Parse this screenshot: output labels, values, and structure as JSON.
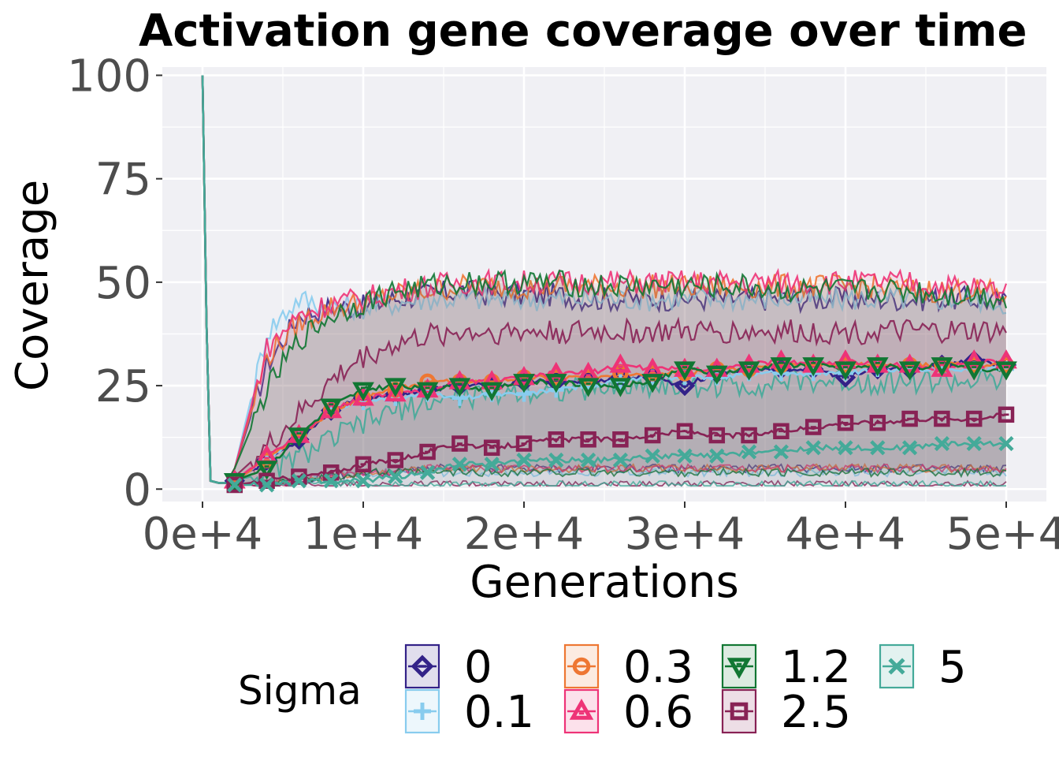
{
  "chart_data": {
    "type": "line",
    "title": "Activation gene coverage over time",
    "xlabel": "Generations",
    "ylabel": "Coverage",
    "xlim": [
      -2500,
      52500
    ],
    "ylim": [
      -3,
      102
    ],
    "x_ticks": [
      0,
      10000,
      20000,
      30000,
      40000,
      50000
    ],
    "x_tick_labels": [
      "0e+4",
      "1e+4",
      "2e+4",
      "3e+4",
      "4e+4",
      "5e+4"
    ],
    "y_ticks": [
      0,
      25,
      50,
      75,
      100
    ],
    "y_tick_labels": [
      "0",
      "25",
      "50",
      "75",
      "100"
    ],
    "grid": true,
    "legend": {
      "title": "Sigma",
      "position": "bottom"
    },
    "marker_x": [
      2000,
      4000,
      6000,
      8000,
      10000,
      12000,
      14000,
      16000,
      18000,
      20000,
      22000,
      24000,
      26000,
      28000,
      30000,
      32000,
      34000,
      36000,
      38000,
      40000,
      42000,
      44000,
      46000,
      48000,
      50000
    ],
    "series": [
      {
        "name": "0",
        "color": "#332288",
        "marker": "diamond",
        "values": [
          2,
          7,
          12,
          19,
          22,
          23,
          24,
          25,
          25,
          26,
          26,
          26,
          27,
          27,
          25,
          28,
          29,
          29,
          29,
          27,
          29,
          29,
          30,
          31,
          30
        ],
        "band_upper": [
          5,
          30,
          42,
          44,
          44,
          46,
          47,
          48,
          47,
          47,
          47,
          46,
          46,
          46,
          46,
          46,
          46,
          46,
          46,
          46,
          46,
          46,
          46,
          46,
          45
        ],
        "band_lower": [
          1,
          1,
          2,
          3,
          4,
          4,
          5,
          5,
          5,
          5,
          5,
          5,
          5,
          5,
          5,
          5,
          5,
          5,
          5,
          5,
          5,
          5,
          5,
          5,
          5
        ]
      },
      {
        "name": "0.1",
        "color": "#88CCEE",
        "marker": "plus",
        "values": [
          2,
          7,
          13,
          19,
          21,
          22,
          23,
          22,
          23,
          23,
          24,
          25,
          26,
          27,
          27,
          27,
          28,
          28,
          28,
          28,
          29,
          29,
          29,
          29,
          29
        ],
        "band_upper": [
          5,
          38,
          46,
          44,
          44,
          45,
          46,
          46,
          46,
          46,
          46,
          46,
          46,
          46,
          46,
          46,
          46,
          46,
          46,
          46,
          46,
          46,
          46,
          46,
          45
        ],
        "band_lower": [
          1,
          1,
          2,
          3,
          4,
          4,
          4,
          4,
          4,
          4,
          4,
          4,
          4,
          4,
          4,
          4,
          4,
          4,
          4,
          4,
          4,
          4,
          4,
          4,
          4
        ]
      },
      {
        "name": "0.3",
        "color": "#EE7733",
        "marker": "circle",
        "values": [
          2,
          7,
          13,
          19,
          22,
          24,
          26,
          26,
          26,
          27,
          27,
          27,
          28,
          28,
          28,
          29,
          29,
          30,
          30,
          30,
          30,
          30,
          30,
          30,
          30
        ],
        "band_upper": [
          5,
          32,
          40,
          44,
          45,
          47,
          48,
          49,
          49,
          49,
          49,
          49,
          49,
          49,
          49,
          49,
          49,
          49,
          49,
          49,
          49,
          48,
          48,
          48,
          47
        ],
        "band_lower": [
          1,
          1,
          2,
          3,
          4,
          4,
          5,
          5,
          5,
          5,
          5,
          5,
          5,
          5,
          5,
          5,
          5,
          5,
          5,
          5,
          5,
          5,
          5,
          5,
          5
        ]
      },
      {
        "name": "0.6",
        "color": "#EE3377",
        "marker": "triangle",
        "values": [
          2,
          8,
          13,
          19,
          22,
          23,
          24,
          26,
          26,
          27,
          28,
          28,
          30,
          29,
          29,
          29,
          30,
          31,
          30,
          31,
          30,
          30,
          29,
          31,
          31
        ],
        "band_upper": [
          5,
          34,
          42,
          45,
          46,
          48,
          49,
          50,
          50,
          50,
          50,
          50,
          50,
          50,
          50,
          50,
          50,
          50,
          50,
          50,
          50,
          50,
          49,
          49,
          48
        ],
        "band_lower": [
          1,
          1,
          2,
          3,
          4,
          4,
          5,
          5,
          5,
          5,
          5,
          5,
          5,
          5,
          5,
          5,
          5,
          5,
          5,
          5,
          5,
          5,
          5,
          5,
          5
        ]
      },
      {
        "name": "1.2",
        "color": "#117733",
        "marker": "triangle-down",
        "values": [
          2,
          5,
          13,
          20,
          24,
          25,
          24,
          25,
          24,
          26,
          26,
          25,
          25,
          26,
          29,
          28,
          29,
          30,
          30,
          29,
          30,
          29,
          30,
          29,
          29
        ],
        "band_upper": [
          5,
          24,
          36,
          42,
          45,
          48,
          49,
          50,
          50,
          50,
          50,
          49,
          49,
          49,
          49,
          49,
          49,
          48,
          48,
          48,
          48,
          48,
          47,
          47,
          46
        ],
        "band_lower": [
          1,
          1,
          2,
          3,
          4,
          4,
          4,
          4,
          4,
          4,
          4,
          4,
          4,
          4,
          4,
          4,
          4,
          4,
          4,
          4,
          4,
          4,
          4,
          4,
          4
        ]
      },
      {
        "name": "2.5",
        "color": "#882255",
        "marker": "square",
        "values": [
          1,
          2,
          3,
          4,
          6,
          7,
          9,
          11,
          10,
          11,
          12,
          12,
          12,
          13,
          14,
          13,
          13,
          14,
          15,
          16,
          16,
          17,
          17,
          17,
          18
        ],
        "band_upper": [
          3,
          10,
          18,
          26,
          32,
          35,
          37,
          38,
          38,
          38,
          38,
          38,
          38,
          38,
          38,
          38,
          38,
          38,
          38,
          38,
          38,
          38,
          38,
          38,
          38
        ],
        "band_lower": [
          1,
          1,
          1,
          1,
          1,
          1,
          1,
          1,
          1,
          1,
          1,
          1,
          1,
          1,
          1,
          1,
          1,
          1,
          1,
          1,
          1,
          1,
          1,
          1,
          1
        ]
      },
      {
        "name": "5",
        "color": "#44AA99",
        "marker": "cross",
        "values": [
          1,
          1,
          2,
          2,
          2,
          3,
          4,
          6,
          6,
          7,
          7,
          7,
          7,
          8,
          8,
          8,
          9,
          9,
          10,
          10,
          10,
          10,
          11,
          11,
          11
        ],
        "band_upper": [
          2,
          4,
          8,
          12,
          16,
          19,
          21,
          22,
          23,
          24,
          24,
          24,
          25,
          25,
          25,
          25,
          25,
          26,
          26,
          26,
          26,
          26,
          26,
          26,
          26
        ],
        "band_lower": [
          1,
          1,
          1,
          1,
          1,
          1,
          1,
          1,
          1,
          1,
          1,
          1,
          1,
          1,
          1,
          1,
          1,
          1,
          1,
          1,
          1,
          1,
          1,
          1,
          1
        ]
      }
    ]
  }
}
